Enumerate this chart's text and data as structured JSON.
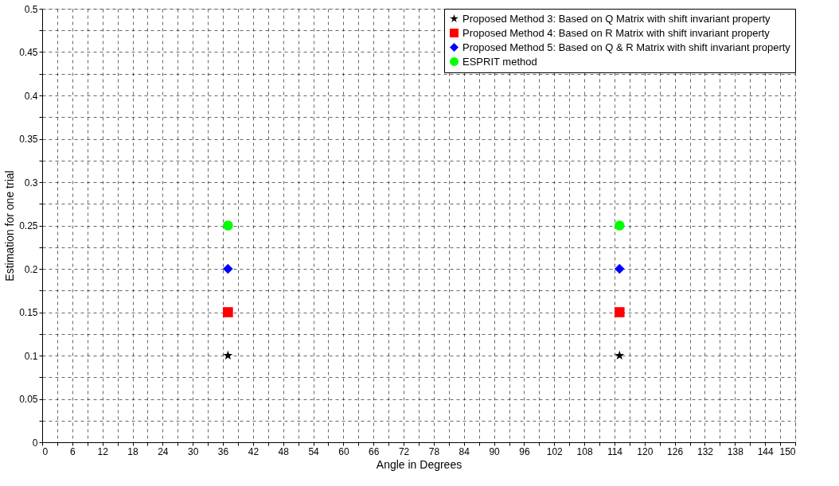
{
  "chart_data": {
    "type": "scatter",
    "xlabel": "Angle in Degrees",
    "ylabel": "Estimation for one trial",
    "x": [
      37,
      115
    ],
    "series": [
      {
        "name": "Proposed Method 3: Based on Q Matrix with shift invariant property",
        "color": "#000000",
        "marker": "star",
        "values": [
          0.1,
          0.1
        ]
      },
      {
        "name": "Proposed Method 4: Based on R Matrix with shift invariant property",
        "color": "#ff0000",
        "marker": "square",
        "values": [
          0.15,
          0.15
        ]
      },
      {
        "name": "Proposed Method 5: Based on Q & R Matrix with shift invariant property",
        "color": "#0000ff",
        "marker": "diamond",
        "values": [
          0.2,
          0.2
        ]
      },
      {
        "name": "ESPRIT method",
        "color": "#00ff00",
        "marker": "circle",
        "values": [
          0.25,
          0.25
        ]
      }
    ],
    "xlim": [
      0,
      150
    ],
    "xticks": [
      0,
      6,
      12,
      18,
      24,
      30,
      36,
      42,
      48,
      54,
      60,
      66,
      72,
      78,
      84,
      90,
      96,
      102,
      108,
      114,
      120,
      126,
      132,
      138,
      144,
      150
    ],
    "ylim": [
      0,
      0.5
    ],
    "yticks": [
      0,
      0.05,
      0.1,
      0.15,
      0.2,
      0.25,
      0.3,
      0.35,
      0.4,
      0.45,
      0.5
    ],
    "grid": true,
    "legend": "top right",
    "line_style": "dashed"
  }
}
